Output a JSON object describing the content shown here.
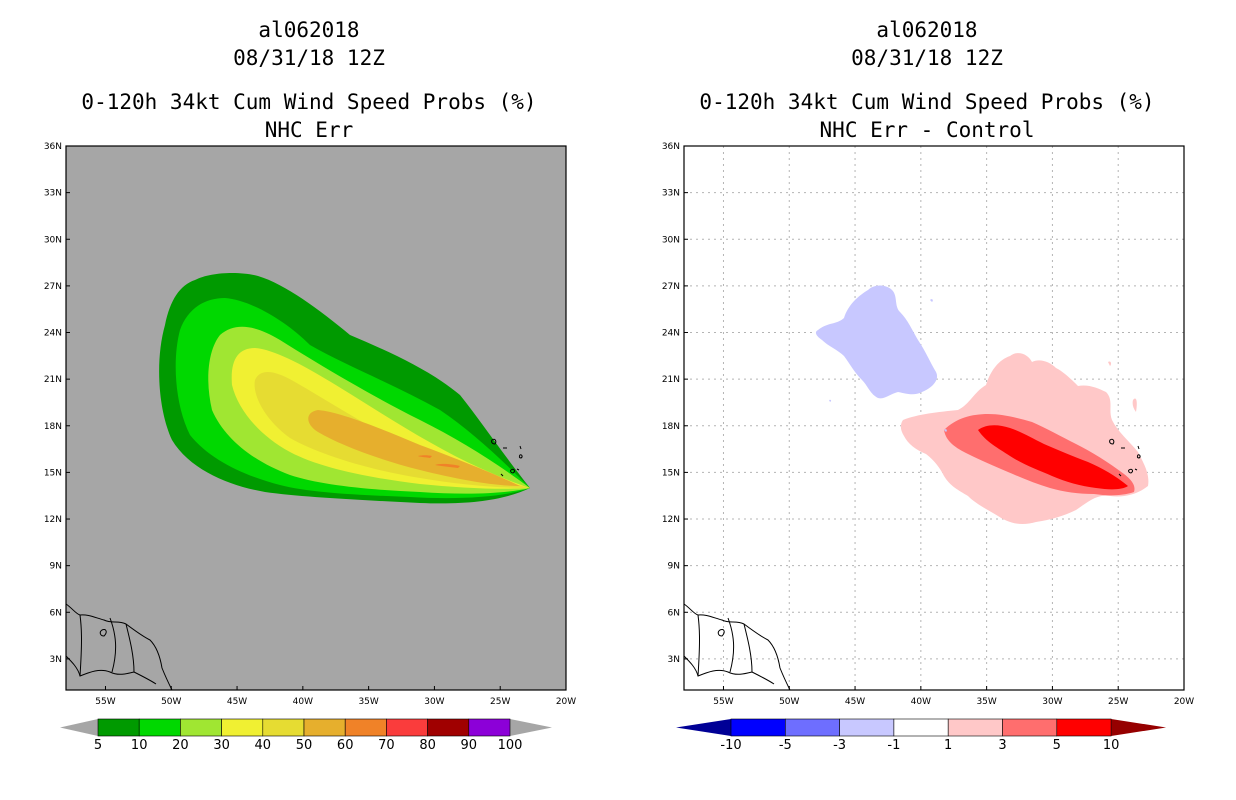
{
  "panels": [
    {
      "storm_id": "al062018",
      "datetime": "08/31/18 12Z",
      "product": "0-120h 34kt Cum Wind Speed Probs (%)",
      "subtitle": "NHC Err",
      "lat_labels": [
        "36N",
        "33N",
        "30N",
        "27N",
        "24N",
        "21N",
        "18N",
        "15N",
        "12N",
        "9N",
        "6N",
        "3N"
      ],
      "lon_labels": [
        "55W",
        "50W",
        "45W",
        "40W",
        "35W",
        "30W",
        "25W",
        "20W"
      ],
      "colorbar": {
        "labels": [
          "5",
          "10",
          "20",
          "30",
          "40",
          "50",
          "60",
          "70",
          "80",
          "90",
          "100"
        ],
        "colors": [
          "#009a00",
          "#00d800",
          "#a0e632",
          "#f0f032",
          "#e6dc32",
          "#e6af2d",
          "#f08228",
          "#fa3c3c",
          "#a00000",
          "#8c00d8"
        ],
        "end_triangle_color": "#a6a6a6"
      },
      "background_color": "#a6a6a6"
    },
    {
      "storm_id": "al062018",
      "datetime": "08/31/18 12Z",
      "product": "0-120h 34kt Cum Wind Speed Probs (%)",
      "subtitle": "NHC Err - Control",
      "lat_labels": [
        "36N",
        "33N",
        "30N",
        "27N",
        "24N",
        "21N",
        "18N",
        "15N",
        "12N",
        "9N",
        "6N",
        "3N"
      ],
      "lon_labels": [
        "55W",
        "50W",
        "45W",
        "40W",
        "35W",
        "30W",
        "25W",
        "20W"
      ],
      "colorbar": {
        "labels": [
          "-10",
          "-5",
          "-3",
          "-1",
          "1",
          "3",
          "5",
          "10"
        ],
        "colors": [
          "#0000ff",
          "#6e6eff",
          "#c8c8ff",
          "#ffffff",
          "#ffc8c8",
          "#ff6e6e",
          "#ff0000"
        ],
        "low_triangle_color": "#000096",
        "high_triangle_color": "#960000"
      },
      "background_color": "#ffffff"
    }
  ]
}
